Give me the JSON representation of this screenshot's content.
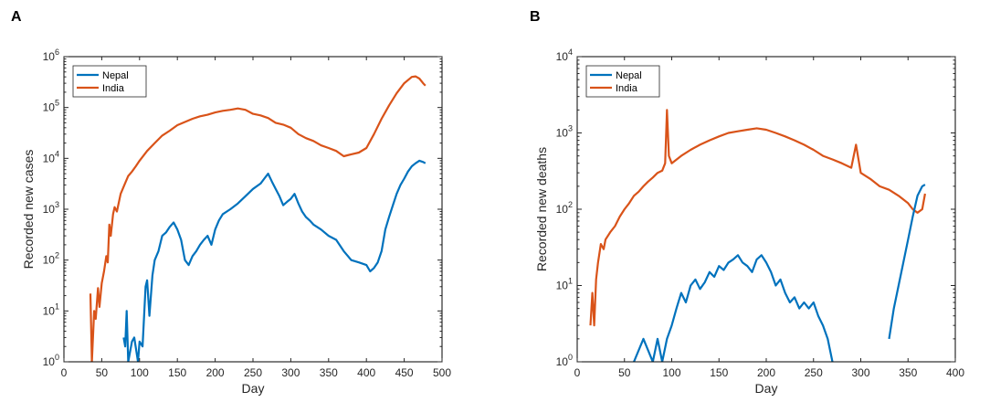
{
  "colors": {
    "nepal": "#0072BD",
    "india": "#D95319",
    "axis": "#262626",
    "frame": "#000000"
  },
  "panels": [
    {
      "letter": "A"
    },
    {
      "letter": "B"
    }
  ],
  "chart_data": [
    {
      "type": "line",
      "xlabel": "Day",
      "ylabel": "Recorded new cases",
      "xlim": [
        0,
        500
      ],
      "ylim_log10": [
        0,
        6
      ],
      "y_scale": "log",
      "x_ticks": [
        0,
        50,
        100,
        150,
        200,
        250,
        300,
        350,
        400,
        450,
        500
      ],
      "y_tick_exponents": [
        0,
        1,
        2,
        3,
        4,
        5,
        6
      ],
      "legend": {
        "position": "top-left",
        "entries": [
          "Nepal",
          "India"
        ]
      },
      "series": [
        {
          "name": "India",
          "points": [
            [
              35,
              22
            ],
            [
              37,
              1
            ],
            [
              40,
              10
            ],
            [
              42,
              7
            ],
            [
              45,
              28
            ],
            [
              47,
              12
            ],
            [
              50,
              35
            ],
            [
              53,
              60
            ],
            [
              56,
              120
            ],
            [
              58,
              90
            ],
            [
              60,
              500
            ],
            [
              62,
              300
            ],
            [
              65,
              800
            ],
            [
              67,
              1100
            ],
            [
              70,
              900
            ],
            [
              75,
              2000
            ],
            [
              80,
              3000
            ],
            [
              85,
              4500
            ],
            [
              90,
              5500
            ],
            [
              95,
              7000
            ],
            [
              100,
              9000
            ],
            [
              110,
              14000
            ],
            [
              120,
              20000
            ],
            [
              130,
              28000
            ],
            [
              140,
              35000
            ],
            [
              150,
              45000
            ],
            [
              160,
              52000
            ],
            [
              170,
              60000
            ],
            [
              180,
              67000
            ],
            [
              190,
              72000
            ],
            [
              200,
              80000
            ],
            [
              210,
              86000
            ],
            [
              220,
              90000
            ],
            [
              230,
              96000
            ],
            [
              240,
              90000
            ],
            [
              250,
              75000
            ],
            [
              260,
              70000
            ],
            [
              270,
              62000
            ],
            [
              280,
              50000
            ],
            [
              290,
              46000
            ],
            [
              300,
              40000
            ],
            [
              310,
              30000
            ],
            [
              320,
              25000
            ],
            [
              330,
              22000
            ],
            [
              340,
              18000
            ],
            [
              350,
              16000
            ],
            [
              360,
              14000
            ],
            [
              370,
              11000
            ],
            [
              380,
              12000
            ],
            [
              390,
              13000
            ],
            [
              400,
              16000
            ],
            [
              410,
              30000
            ],
            [
              420,
              60000
            ],
            [
              430,
              110000
            ],
            [
              440,
              190000
            ],
            [
              450,
              300000
            ],
            [
              460,
              400000
            ],
            [
              465,
              410000
            ],
            [
              470,
              370000
            ],
            [
              475,
              300000
            ],
            [
              478,
              270000
            ]
          ]
        },
        {
          "name": "Nepal",
          "points": [
            [
              79,
              3
            ],
            [
              81,
              2
            ],
            [
              83,
              10
            ],
            [
              85,
              1
            ],
            [
              90,
              2.5
            ],
            [
              93,
              3
            ],
            [
              98,
              1
            ],
            [
              100,
              2.5
            ],
            [
              104,
              2
            ],
            [
              108,
              30
            ],
            [
              110,
              40
            ],
            [
              113,
              8
            ],
            [
              117,
              50
            ],
            [
              120,
              100
            ],
            [
              125,
              150
            ],
            [
              130,
              300
            ],
            [
              135,
              350
            ],
            [
              140,
              450
            ],
            [
              145,
              550
            ],
            [
              150,
              400
            ],
            [
              155,
              250
            ],
            [
              160,
              100
            ],
            [
              165,
              80
            ],
            [
              170,
              120
            ],
            [
              175,
              150
            ],
            [
              180,
              200
            ],
            [
              185,
              250
            ],
            [
              190,
              300
            ],
            [
              195,
              200
            ],
            [
              200,
              400
            ],
            [
              205,
              600
            ],
            [
              210,
              800
            ],
            [
              220,
              1000
            ],
            [
              230,
              1300
            ],
            [
              240,
              1800
            ],
            [
              250,
              2500
            ],
            [
              260,
              3200
            ],
            [
              265,
              4000
            ],
            [
              270,
              5000
            ],
            [
              275,
              3500
            ],
            [
              280,
              2500
            ],
            [
              285,
              1800
            ],
            [
              290,
              1200
            ],
            [
              295,
              1400
            ],
            [
              300,
              1600
            ],
            [
              305,
              2000
            ],
            [
              310,
              1300
            ],
            [
              315,
              900
            ],
            [
              320,
              700
            ],
            [
              325,
              600
            ],
            [
              330,
              500
            ],
            [
              340,
              400
            ],
            [
              350,
              300
            ],
            [
              360,
              250
            ],
            [
              370,
              150
            ],
            [
              380,
              100
            ],
            [
              390,
              90
            ],
            [
              400,
              80
            ],
            [
              405,
              60
            ],
            [
              410,
              70
            ],
            [
              415,
              90
            ],
            [
              420,
              150
            ],
            [
              425,
              400
            ],
            [
              430,
              700
            ],
            [
              435,
              1200
            ],
            [
              440,
              2000
            ],
            [
              445,
              3000
            ],
            [
              450,
              4000
            ],
            [
              455,
              5500
            ],
            [
              460,
              7000
            ],
            [
              465,
              8000
            ],
            [
              470,
              9000
            ],
            [
              475,
              8500
            ],
            [
              478,
              8000
            ]
          ]
        }
      ]
    },
    {
      "type": "line",
      "xlabel": "Day",
      "ylabel": "Recorded new deaths",
      "xlim": [
        0,
        400
      ],
      "ylim_log10": [
        0,
        4
      ],
      "y_scale": "log",
      "x_ticks": [
        0,
        50,
        100,
        150,
        200,
        250,
        300,
        350,
        400
      ],
      "y_tick_exponents": [
        0,
        1,
        2,
        3,
        4
      ],
      "legend": {
        "position": "top-left",
        "entries": [
          "Nepal",
          "India"
        ]
      },
      "series": [
        {
          "name": "India",
          "points": [
            [
              14,
              3
            ],
            [
              16,
              8
            ],
            [
              18,
              3
            ],
            [
              20,
              12
            ],
            [
              22,
              20
            ],
            [
              25,
              35
            ],
            [
              28,
              30
            ],
            [
              30,
              40
            ],
            [
              35,
              50
            ],
            [
              40,
              60
            ],
            [
              45,
              80
            ],
            [
              50,
              100
            ],
            [
              55,
              120
            ],
            [
              60,
              150
            ],
            [
              65,
              170
            ],
            [
              70,
              200
            ],
            [
              75,
              230
            ],
            [
              80,
              260
            ],
            [
              85,
              300
            ],
            [
              90,
              320
            ],
            [
              93,
              400
            ],
            [
              95,
              2000
            ],
            [
              97,
              500
            ],
            [
              100,
              400
            ],
            [
              110,
              500
            ],
            [
              120,
              600
            ],
            [
              130,
              700
            ],
            [
              140,
              800
            ],
            [
              150,
              900
            ],
            [
              160,
              1000
            ],
            [
              170,
              1050
            ],
            [
              180,
              1100
            ],
            [
              190,
              1150
            ],
            [
              200,
              1100
            ],
            [
              210,
              1000
            ],
            [
              220,
              900
            ],
            [
              230,
              800
            ],
            [
              240,
              700
            ],
            [
              250,
              600
            ],
            [
              260,
              500
            ],
            [
              270,
              450
            ],
            [
              280,
              400
            ],
            [
              290,
              350
            ],
            [
              295,
              700
            ],
            [
              300,
              300
            ],
            [
              310,
              250
            ],
            [
              320,
              200
            ],
            [
              330,
              180
            ],
            [
              340,
              150
            ],
            [
              350,
              120
            ],
            [
              355,
              100
            ],
            [
              360,
              90
            ],
            [
              365,
              100
            ],
            [
              368,
              160
            ]
          ]
        },
        {
          "name": "Nepal",
          "points": [
            [
              60,
              1
            ],
            [
              70,
              2
            ],
            [
              80,
              1
            ],
            [
              85,
              2
            ],
            [
              90,
              1
            ],
            [
              95,
              2
            ],
            [
              100,
              3
            ],
            [
              105,
              5
            ],
            [
              110,
              8
            ],
            [
              115,
              6
            ],
            [
              120,
              10
            ],
            [
              125,
              12
            ],
            [
              130,
              9
            ],
            [
              135,
              11
            ],
            [
              140,
              15
            ],
            [
              145,
              13
            ],
            [
              150,
              18
            ],
            [
              155,
              16
            ],
            [
              160,
              20
            ],
            [
              165,
              22
            ],
            [
              170,
              25
            ],
            [
              175,
              20
            ],
            [
              180,
              18
            ],
            [
              185,
              15
            ],
            [
              190,
              22
            ],
            [
              195,
              25
            ],
            [
              200,
              20
            ],
            [
              205,
              15
            ],
            [
              210,
              10
            ],
            [
              215,
              12
            ],
            [
              220,
              8
            ],
            [
              225,
              6
            ],
            [
              230,
              7
            ],
            [
              235,
              5
            ],
            [
              240,
              6
            ],
            [
              245,
              5
            ],
            [
              250,
              6
            ],
            [
              255,
              4
            ],
            [
              260,
              3
            ],
            [
              265,
              2
            ],
            [
              270,
              1
            ]
          ]
        },
        {
          "name": "Nepal",
          "points": [
            [
              330,
              2
            ],
            [
              335,
              5
            ],
            [
              340,
              10
            ],
            [
              345,
              20
            ],
            [
              350,
              40
            ],
            [
              355,
              80
            ],
            [
              360,
              150
            ],
            [
              365,
              200
            ],
            [
              368,
              210
            ]
          ]
        }
      ]
    }
  ]
}
